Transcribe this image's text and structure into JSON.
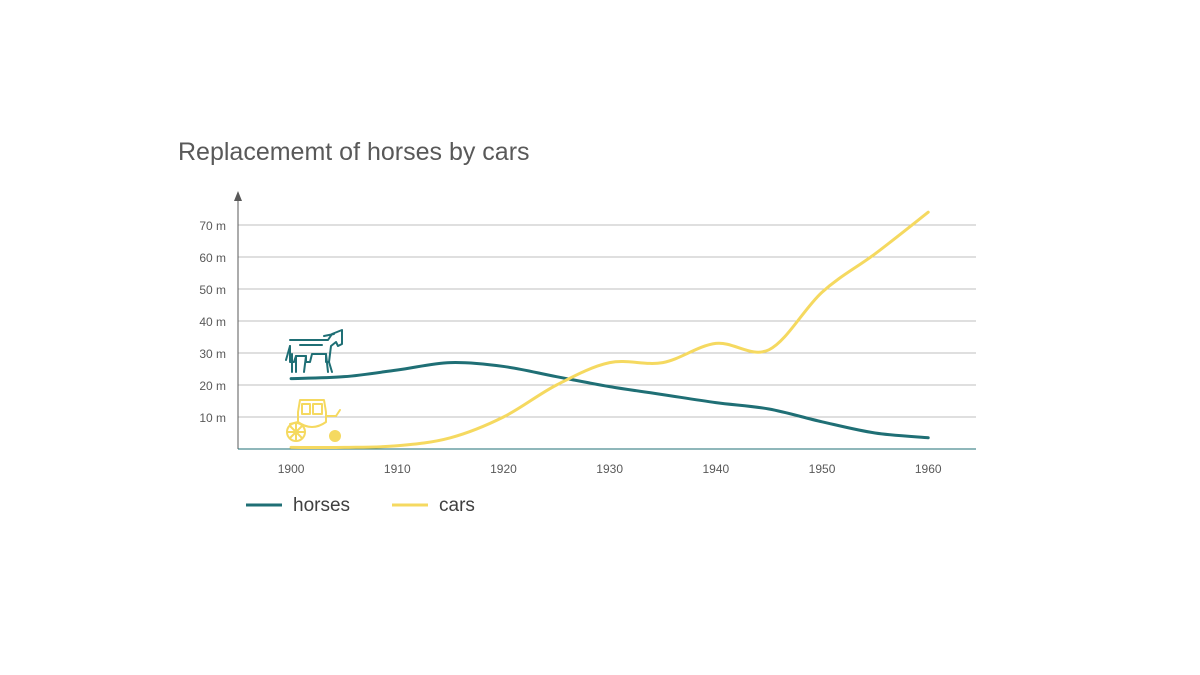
{
  "colors": {
    "horses": "#1f6f75",
    "cars": "#f5d960",
    "grid": "#bfbfbf",
    "axis": "#595959",
    "baseline": "#1f6f75"
  },
  "icons": {
    "horses": "horse-icon",
    "cars": "carriage-icon"
  },
  "chart_data": {
    "type": "line",
    "title": "Replacememt of horses by cars",
    "xlabel": "",
    "ylabel": "",
    "x_ticks": [
      1900,
      1910,
      1920,
      1930,
      1940,
      1950,
      1960
    ],
    "y_ticks": [
      "10 m",
      "20 m",
      "30 m",
      "40 m",
      "50 m",
      "60 m",
      "70 m"
    ],
    "xlim": [
      1895,
      1964.5
    ],
    "ylim": [
      0,
      70
    ],
    "grid": true,
    "legend": "bottom-left",
    "series": [
      {
        "name": "horses",
        "x": [
          1900,
          1905,
          1910,
          1915,
          1920,
          1925,
          1930,
          1935,
          1940,
          1945,
          1950,
          1955,
          1960
        ],
        "y": [
          22,
          22.6,
          24.7,
          27,
          25.8,
          22.6,
          19.5,
          17,
          14.5,
          12.5,
          8.5,
          5,
          3.5
        ]
      },
      {
        "name": "cars",
        "x": [
          1900,
          1905,
          1910,
          1915,
          1920,
          1925,
          1930,
          1935,
          1940,
          1945,
          1950,
          1955,
          1960
        ],
        "y": [
          0.5,
          0.5,
          1,
          3.5,
          10,
          20,
          27,
          27,
          33,
          31,
          49,
          61,
          74
        ]
      }
    ]
  }
}
